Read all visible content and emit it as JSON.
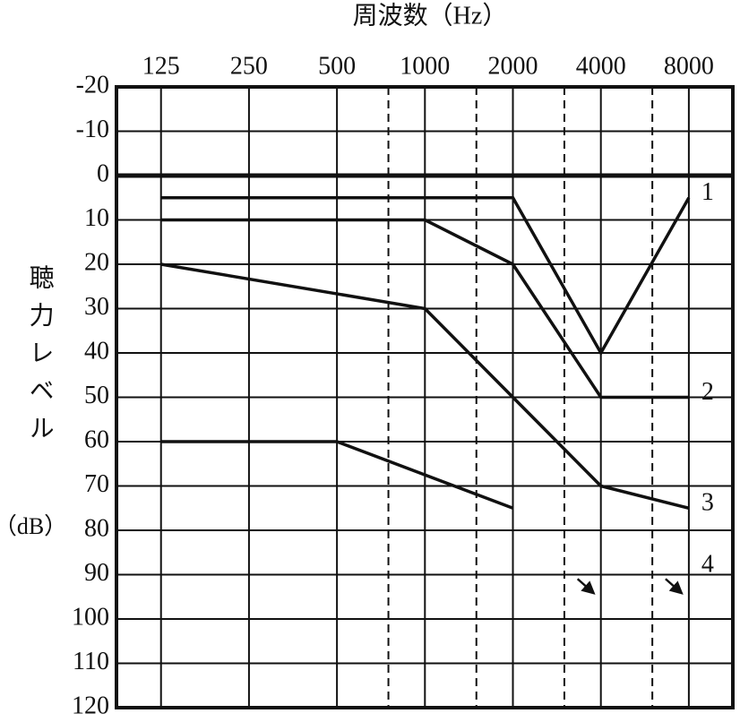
{
  "chart_data": {
    "type": "line",
    "title": "周波数（Hz）",
    "y_label": "聴力レベル",
    "y_label_unit": "（dB）",
    "log_x": true,
    "xlim": [
      88,
      11314
    ],
    "xticks": [
      125,
      250,
      500,
      1000,
      2000,
      4000,
      8000
    ],
    "minor_xticks": [
      750,
      1500,
      3000,
      6000
    ],
    "ylim": [
      -20,
      120
    ],
    "y_reversed": true,
    "yticks": [
      -20,
      -10,
      0,
      10,
      20,
      30,
      40,
      50,
      60,
      70,
      80,
      90,
      100,
      110,
      120
    ],
    "grid": true,
    "series": [
      {
        "name": "1",
        "color": "#111111",
        "x": [
          125,
          2000,
          4000,
          8000
        ],
        "values": [
          5,
          5,
          40,
          5
        ]
      },
      {
        "name": "2",
        "color": "#111111",
        "x": [
          125,
          1000,
          2000,
          4000,
          8000
        ],
        "values": [
          10,
          10,
          20,
          50,
          50
        ]
      },
      {
        "name": "3",
        "color": "#111111",
        "x": [
          125,
          1000,
          2000,
          4000,
          8000
        ],
        "values": [
          20,
          30,
          50,
          70,
          75
        ]
      },
      {
        "name": "4",
        "color": "#111111",
        "x": [
          125,
          500,
          2000
        ],
        "values": [
          60,
          60,
          75
        ],
        "scaleout": {
          "x": [
            4000,
            8000
          ],
          "values": [
            95,
            95
          ]
        }
      }
    ]
  }
}
